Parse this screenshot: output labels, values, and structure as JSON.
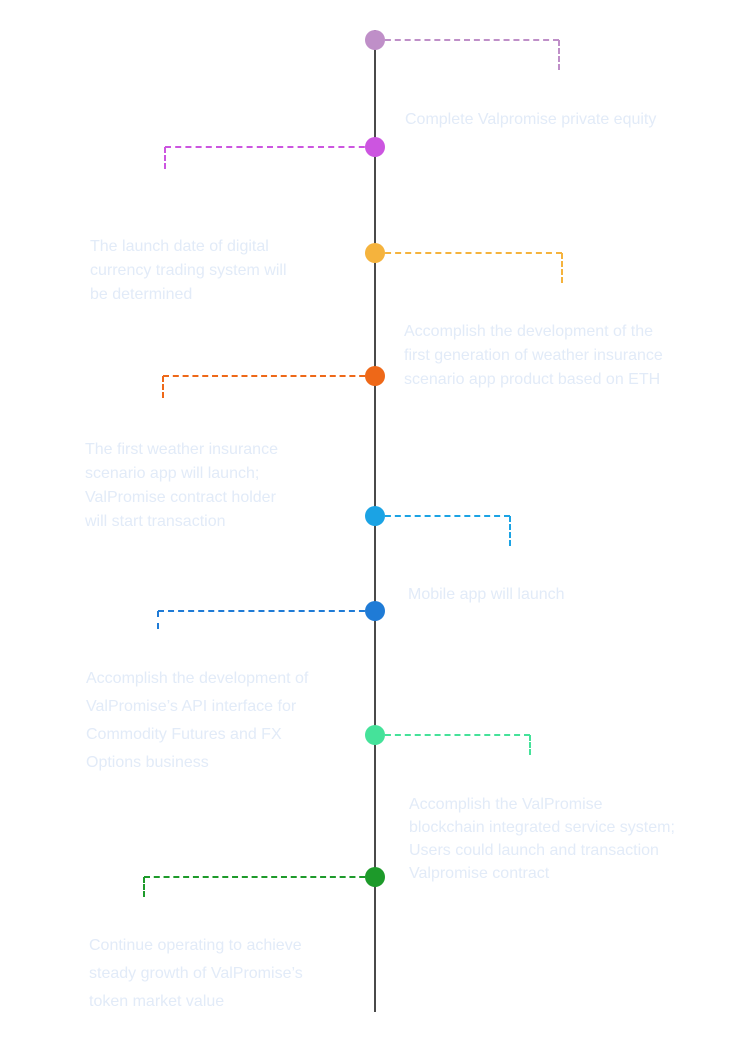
{
  "milestones": [
    {
      "color": "#bf8fc8",
      "text": ""
    },
    {
      "color": "#cc55e0",
      "text": "Complete Valpromise private equity"
    },
    {
      "color": "#f5b33d",
      "text": "The launch date of digital\ncurrency trading system will\nbe determined"
    },
    {
      "color": "#ee6818",
      "text": "Accomplish the development of the\nfirst generation of weather insurance\nscenario app product based on ETH"
    },
    {
      "color": "#1ba3e4",
      "text": "The first weather insurance\nscenario app will launch;\nValPromise contract holder\nwill start transaction"
    },
    {
      "color": "#1f7bd6",
      "text": "Mobile app will launch"
    },
    {
      "color": "#45e29a",
      "text": "Accomplish the development of\nValPromise’s API interface for\nCommodity Futures and FX\nOptions business"
    },
    {
      "color": "#1d9a2a",
      "text": "Accomplish the ValPromise\nblockchain integrated service system;\nUsers could launch and transaction\nValpromise contract"
    },
    {
      "color": "",
      "text": "Continue operating to achieve\nsteady growth of ValPromise’s\ntoken market value"
    }
  ]
}
